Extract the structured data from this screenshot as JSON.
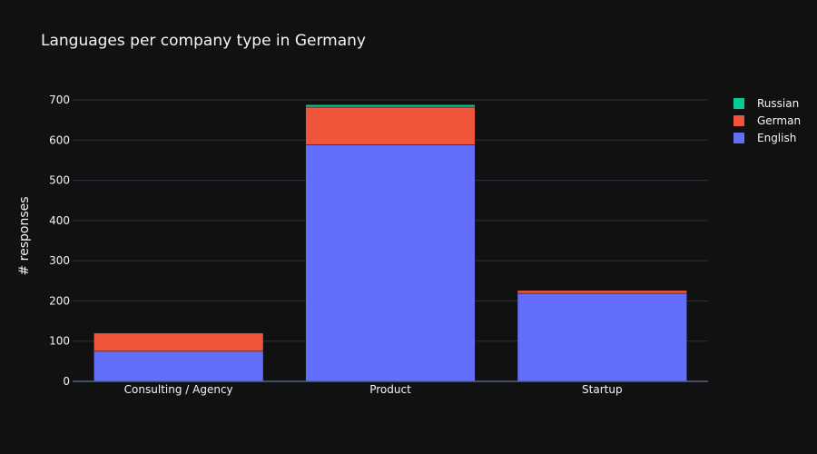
{
  "chart_data": {
    "type": "bar",
    "barmode": "stack",
    "title": "Languages per company type in Germany",
    "xlabel": "",
    "ylabel": "# responses",
    "categories": [
      "Consulting / Agency",
      "Product",
      "Startup"
    ],
    "series": [
      {
        "name": "English",
        "color": "#636efa",
        "values": [
          75,
          588,
          219
        ]
      },
      {
        "name": "German",
        "color": "#ef553b",
        "values": [
          45,
          94,
          7
        ]
      },
      {
        "name": "Russian",
        "color": "#00cc96",
        "values": [
          0,
          6,
          0
        ]
      }
    ],
    "ylim": [
      0,
      700
    ],
    "yticks": [
      0,
      100,
      200,
      300,
      400,
      500,
      600,
      700
    ],
    "grid": true,
    "legend_position": "top-right",
    "legend_order": [
      "Russian",
      "German",
      "English"
    ]
  }
}
